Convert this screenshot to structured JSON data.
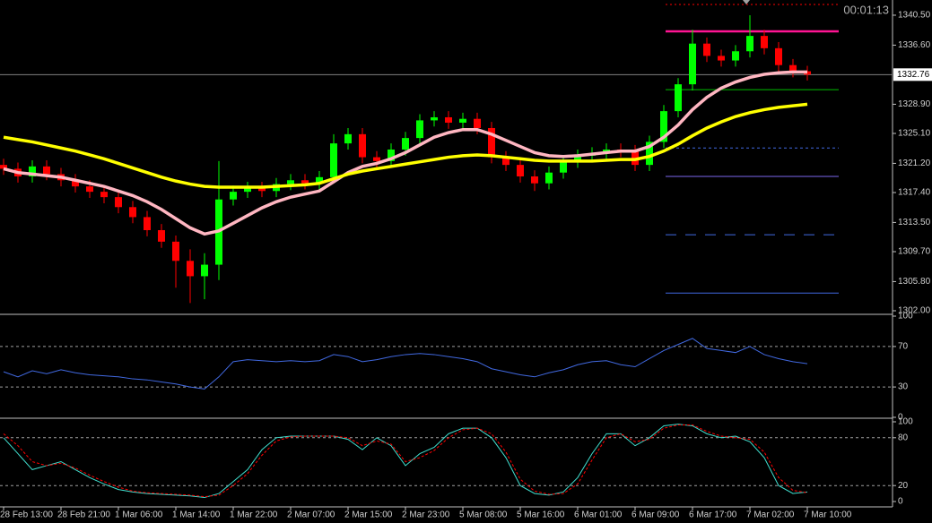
{
  "chart_data": [
    {
      "type": "candlestick",
      "timer": "00:01:13",
      "categories": [
        "28 Feb 13:00",
        null,
        null,
        null,
        "28 Feb 21:00",
        null,
        null,
        null,
        "1 Mar 06:00",
        null,
        null,
        null,
        "1 Mar 14:00",
        null,
        null,
        null,
        "1 Mar 22:00",
        null,
        null,
        null,
        "2 Mar 07:00",
        null,
        null,
        null,
        "2 Mar 15:00",
        null,
        null,
        null,
        "2 Mar 23:00",
        null,
        null,
        null,
        "5 Mar 08:00",
        null,
        null,
        null,
        "5 Mar 16:00",
        null,
        null,
        null,
        "6 Mar 01:00",
        null,
        null,
        null,
        "6 Mar 09:00",
        null,
        null,
        null,
        "6 Mar 17:00",
        null,
        null,
        null,
        "7 Mar 02:00",
        null,
        null,
        null,
        "7 Mar 10:00"
      ],
      "open": [
        1321.0,
        1320.5,
        1319.5,
        1320.8,
        1319.8,
        1319.0,
        1318.2,
        1317.5,
        1316.8,
        1315.5,
        1314.2,
        1312.5,
        1311.0,
        1308.5,
        1306.5,
        1308.0,
        1316.5,
        1317.5,
        1318.0,
        1317.6,
        1318.5,
        1319.0,
        1318.6,
        1319.4,
        1323.8,
        1325.0,
        1322.0,
        1321.5,
        1323.0,
        1324.5,
        1326.8,
        1327.2,
        1326.5,
        1327.0,
        1325.8,
        1322.0,
        1321.0,
        1319.5,
        1318.6,
        1320.0,
        1321.4,
        1322.2,
        1322.5,
        1323.0,
        1322.8,
        1321.0,
        1324.0,
        1328.0,
        1331.5,
        1336.8,
        1335.2,
        1334.6,
        1335.8,
        1337.8,
        1336.2,
        1334.0,
        1333.2
      ],
      "high": [
        1321.8,
        1321.3,
        1321.6,
        1321.6,
        1320.6,
        1319.8,
        1319.0,
        1318.3,
        1317.6,
        1316.3,
        1315.0,
        1313.3,
        1311.8,
        1310.0,
        1309.5,
        1321.5,
        1318.3,
        1318.8,
        1318.8,
        1319.3,
        1319.8,
        1319.8,
        1320.2,
        1325.0,
        1325.8,
        1325.8,
        1322.8,
        1323.8,
        1325.3,
        1327.6,
        1328.0,
        1328.0,
        1327.8,
        1327.8,
        1326.6,
        1322.8,
        1321.8,
        1320.3,
        1320.8,
        1322.2,
        1323.0,
        1323.3,
        1323.8,
        1323.8,
        1323.6,
        1324.8,
        1328.8,
        1332.3,
        1338.6,
        1337.6,
        1336.0,
        1336.6,
        1340.5,
        1338.6,
        1337.0,
        1334.8,
        1333.9
      ],
      "low": [
        1319.7,
        1318.7,
        1318.7,
        1319.0,
        1318.2,
        1317.4,
        1316.7,
        1316.0,
        1314.7,
        1313.4,
        1311.7,
        1310.2,
        1305.0,
        1303.0,
        1303.5,
        1306.0,
        1315.7,
        1316.7,
        1316.8,
        1316.8,
        1317.7,
        1317.8,
        1317.8,
        1318.6,
        1323.0,
        1321.2,
        1320.7,
        1320.7,
        1322.2,
        1323.7,
        1326.0,
        1325.7,
        1325.7,
        1325.0,
        1321.2,
        1320.2,
        1318.7,
        1317.6,
        1317.8,
        1319.2,
        1320.6,
        1321.4,
        1321.7,
        1322.0,
        1320.2,
        1320.2,
        1323.2,
        1327.2,
        1330.7,
        1334.4,
        1333.8,
        1333.8,
        1335.0,
        1335.4,
        1333.2,
        1332.4,
        1332.0
      ],
      "close": [
        1320.5,
        1319.5,
        1320.8,
        1319.8,
        1319.0,
        1318.2,
        1317.5,
        1316.8,
        1315.5,
        1314.2,
        1312.5,
        1311.0,
        1308.5,
        1306.5,
        1308.0,
        1316.5,
        1317.5,
        1318.0,
        1317.6,
        1318.5,
        1319.0,
        1318.6,
        1319.4,
        1323.8,
        1325.0,
        1322.0,
        1321.5,
        1323.0,
        1324.5,
        1326.8,
        1327.2,
        1326.5,
        1327.0,
        1325.8,
        1322.0,
        1321.0,
        1319.5,
        1318.6,
        1320.0,
        1321.4,
        1322.2,
        1322.5,
        1323.0,
        1322.8,
        1321.0,
        1324.0,
        1328.0,
        1331.5,
        1336.8,
        1335.2,
        1334.6,
        1335.8,
        1337.8,
        1336.2,
        1334.0,
        1333.2,
        1332.76
      ],
      "up_color": "#00ff00",
      "down_color": "#ff0000",
      "series": [
        {
          "color": "#ffb6c1",
          "values": [
            1320.5,
            1320,
            1319.8,
            1319.6,
            1319.4,
            1319,
            1318.6,
            1318.2,
            1317.6,
            1317,
            1316.2,
            1315.2,
            1314,
            1312.8,
            1312,
            1312.4,
            1313.4,
            1314.4,
            1315.4,
            1316.2,
            1316.8,
            1317.2,
            1317.6,
            1318.8,
            1320,
            1320.8,
            1321.2,
            1321.8,
            1322.6,
            1323.6,
            1324.6,
            1325.2,
            1325.6,
            1325.6,
            1325,
            1324.2,
            1323.4,
            1322.6,
            1322.2,
            1322.1,
            1322.2,
            1322.4,
            1322.6,
            1322.8,
            1322.8,
            1323.4,
            1324.6,
            1326.2,
            1328.2,
            1329.8,
            1331,
            1331.8,
            1332.4,
            1332.8,
            1333,
            1333.1,
            1333.1
          ]
        },
        {
          "color": "#ffff00",
          "values": [
            1324.6,
            1324.3,
            1324,
            1323.6,
            1323.2,
            1322.8,
            1322.3,
            1321.8,
            1321.2,
            1320.6,
            1320,
            1319.4,
            1318.9,
            1318.5,
            1318.2,
            1318.1,
            1318.1,
            1318.1,
            1318.1,
            1318.2,
            1318.3,
            1318.4,
            1318.6,
            1319.2,
            1319.8,
            1320.2,
            1320.5,
            1320.8,
            1321.1,
            1321.4,
            1321.7,
            1322,
            1322.2,
            1322.3,
            1322.2,
            1322,
            1321.8,
            1321.6,
            1321.5,
            1321.5,
            1321.5,
            1321.5,
            1321.6,
            1321.7,
            1321.7,
            1322.1,
            1322.8,
            1323.7,
            1324.8,
            1325.8,
            1326.6,
            1327.3,
            1327.8,
            1328.2,
            1328.5,
            1328.7,
            1328.9
          ]
        }
      ],
      "levels": [
        {
          "value": 1341.9,
          "color": "#ff0000",
          "dash": "2 3"
        },
        {
          "value": 1338.4,
          "color": "#ff1493",
          "dash": "none"
        },
        {
          "value": 1330.8,
          "color": "#00c000",
          "dash": "none"
        },
        {
          "value": 1323.2,
          "color": "#4169e1",
          "dash": "3 3"
        },
        {
          "value": 1319.5,
          "color": "#7b68ee",
          "dash": "none"
        },
        {
          "value": 1311.9,
          "color": "#4169e1",
          "dash": "12 10"
        },
        {
          "value": 1304.3,
          "color": "#4169e1",
          "dash": "none"
        }
      ],
      "last_price": 1332.76,
      "ylim": [
        1301.65,
        1342.13
      ],
      "yticks": [
        {
          "value": 1302,
          "label": "1302.00"
        },
        {
          "value": 1305.8,
          "label": "1305.80"
        },
        {
          "value": 1309.7,
          "label": "1309.70"
        },
        {
          "value": 1313.5,
          "label": "1313.50"
        },
        {
          "value": 1317.4,
          "label": "1317.40"
        },
        {
          "value": 1321.2,
          "label": "1321.20"
        },
        {
          "value": 1325.1,
          "label": "1325.10"
        },
        {
          "value": 1328.9,
          "label": "1328.90"
        },
        {
          "value": 1336.6,
          "label": "1336.60"
        },
        {
          "value": 1340.5,
          "label": "1340.50"
        }
      ]
    },
    {
      "type": "line",
      "series": [
        {
          "color": "#4169e1",
          "values": [
            45,
            40,
            46,
            43,
            47,
            44,
            42,
            41,
            40,
            38,
            37,
            35,
            33,
            30,
            28,
            40,
            55,
            57,
            56,
            55,
            56,
            55,
            56,
            62,
            60,
            55,
            57,
            60,
            62,
            63,
            62,
            60,
            58,
            55,
            48,
            45,
            42,
            40,
            44,
            47,
            52,
            55,
            56,
            52,
            50,
            58,
            66,
            72,
            78,
            68,
            66,
            64,
            70,
            62,
            58,
            55,
            53
          ]
        }
      ],
      "levels": [
        30,
        70
      ],
      "ylim": [
        0,
        100
      ],
      "yticks": [
        0,
        30,
        70,
        100
      ]
    },
    {
      "type": "line",
      "series": [
        {
          "color": "#40e0d0",
          "dash": "none",
          "values": [
            80,
            60,
            40,
            45,
            50,
            40,
            30,
            22,
            15,
            12,
            10,
            9,
            8,
            7,
            5,
            10,
            25,
            40,
            65,
            80,
            82,
            82,
            82,
            82,
            78,
            65,
            80,
            70,
            45,
            60,
            68,
            85,
            92,
            92,
            80,
            55,
            20,
            10,
            8,
            12,
            30,
            60,
            85,
            85,
            70,
            80,
            95,
            97,
            95,
            85,
            80,
            82,
            75,
            55,
            20,
            10,
            12
          ]
        },
        {
          "color": "#ff0000",
          "dash": "3 2",
          "values": [
            85,
            70,
            50,
            45,
            48,
            42,
            33,
            25,
            18,
            13,
            11,
            10,
            9,
            8,
            6,
            8,
            20,
            35,
            58,
            76,
            81,
            82,
            82,
            82,
            80,
            70,
            76,
            72,
            50,
            55,
            64,
            80,
            90,
            92,
            85,
            62,
            28,
            13,
            9,
            10,
            22,
            52,
            80,
            85,
            75,
            78,
            92,
            96,
            96,
            88,
            82,
            80,
            78,
            62,
            30,
            14,
            11
          ]
        }
      ],
      "levels": [
        20,
        80
      ],
      "ylim": [
        0,
        100
      ],
      "yticks": [
        0,
        20,
        80,
        100
      ]
    }
  ]
}
